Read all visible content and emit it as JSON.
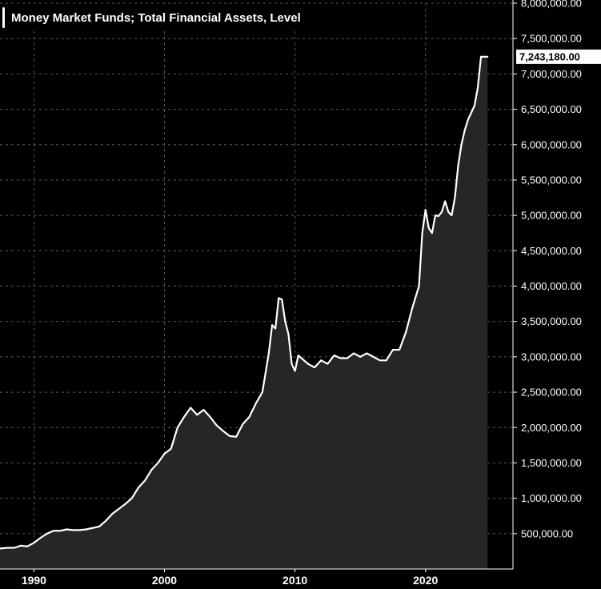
{
  "chart_data": {
    "type": "area",
    "title": "",
    "xlabel": "",
    "ylabel": "",
    "legend_position": "top-left",
    "grid": true,
    "xlim": [
      1987.4,
      2026.7
    ],
    "ylim": [
      0,
      8000000
    ],
    "x_ticks": [
      1990,
      2000,
      2010,
      2020
    ],
    "x_tick_labels": [
      "1990",
      "2000",
      "2010",
      "2020"
    ],
    "y_ticks": [
      500000,
      1000000,
      1500000,
      2000000,
      2500000,
      3000000,
      3500000,
      4000000,
      4500000,
      5000000,
      5500000,
      6000000,
      6500000,
      7000000,
      7500000,
      8000000
    ],
    "y_tick_labels": [
      "500,000.00",
      "1,000,000.00",
      "1,500,000.00",
      "2,000,000.00",
      "2,500,000.00",
      "3,000,000.00",
      "3,500,000.00",
      "4,000,000.00",
      "4,500,000.00",
      "5,000,000.00",
      "5,500,000.00",
      "6,000,000.00",
      "6,500,000.00",
      "7,000,000.00",
      "7,500,000.00",
      "8,000,000.00"
    ],
    "colors": {
      "background": "#000000",
      "line": "#ffffff",
      "area_fill": "#262626",
      "grid": "#5a5a5a",
      "label_box": "#ffffff",
      "label_text": "#000000"
    },
    "last_value_label": "7,243,180.00",
    "series": [
      {
        "name": "Money Market Funds; Total Financial Assets, Level",
        "x": [
          1987.4,
          1988.0,
          1988.5,
          1989.0,
          1989.5,
          1990.0,
          1990.5,
          1991.0,
          1991.5,
          1992.0,
          1992.5,
          1993.0,
          1993.5,
          1994.0,
          1994.5,
          1995.0,
          1995.5,
          1996.0,
          1996.5,
          1997.0,
          1997.5,
          1998.0,
          1998.5,
          1999.0,
          1999.5,
          2000.0,
          2000.5,
          2001.0,
          2001.5,
          2002.0,
          2002.5,
          2003.0,
          2003.5,
          2004.0,
          2004.5,
          2005.0,
          2005.5,
          2006.0,
          2006.5,
          2007.0,
          2007.5,
          2008.0,
          2008.25,
          2008.5,
          2008.75,
          2009.0,
          2009.25,
          2009.5,
          2009.75,
          2010.0,
          2010.25,
          2010.5,
          2011.0,
          2011.5,
          2012.0,
          2012.5,
          2013.0,
          2013.5,
          2014.0,
          2014.5,
          2015.0,
          2015.5,
          2016.0,
          2016.5,
          2017.0,
          2017.5,
          2018.0,
          2018.5,
          2019.0,
          2019.5,
          2019.75,
          2020.0,
          2020.25,
          2020.5,
          2020.75,
          2021.0,
          2021.25,
          2021.5,
          2021.75,
          2022.0,
          2022.25,
          2022.5,
          2022.75,
          2023.0,
          2023.25,
          2023.5,
          2023.75,
          2024.0,
          2024.25,
          2024.5,
          2024.75
        ],
        "values": [
          290000,
          300000,
          300000,
          330000,
          320000,
          370000,
          440000,
          500000,
          540000,
          540000,
          560000,
          550000,
          550000,
          560000,
          580000,
          600000,
          680000,
          780000,
          850000,
          920000,
          1000000,
          1150000,
          1250000,
          1400000,
          1500000,
          1630000,
          1700000,
          2000000,
          2150000,
          2280000,
          2180000,
          2250000,
          2150000,
          2030000,
          1950000,
          1880000,
          1870000,
          2050000,
          2150000,
          2340000,
          2500000,
          3060000,
          3450000,
          3400000,
          3830000,
          3810000,
          3500000,
          3320000,
          2900000,
          2800000,
          3020000,
          2980000,
          2900000,
          2850000,
          2950000,
          2900000,
          3020000,
          2980000,
          2980000,
          3050000,
          3000000,
          3050000,
          3000000,
          2950000,
          2950000,
          3100000,
          3100000,
          3350000,
          3700000,
          4000000,
          4750000,
          5080000,
          4820000,
          4750000,
          5000000,
          4990000,
          5050000,
          5200000,
          5050000,
          5000000,
          5250000,
          5700000,
          6000000,
          6200000,
          6350000,
          6450000,
          6550000,
          6800000,
          7243180,
          7243180,
          7243180
        ]
      }
    ]
  }
}
